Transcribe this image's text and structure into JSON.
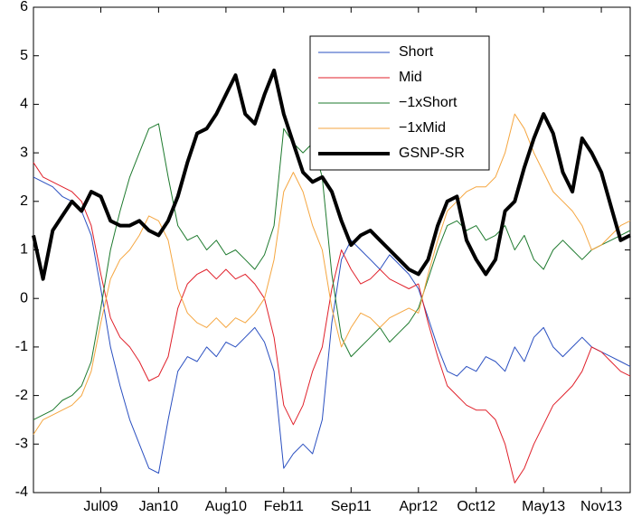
{
  "chart_data": {
    "type": "line",
    "categories": [
      null,
      null,
      null,
      null,
      null,
      null,
      null,
      "Jul09",
      null,
      null,
      null,
      null,
      null,
      "Jan10",
      null,
      null,
      null,
      null,
      null,
      null,
      "Aug10",
      null,
      null,
      null,
      null,
      null,
      "Feb11",
      null,
      null,
      null,
      null,
      null,
      null,
      "Sep11",
      null,
      null,
      null,
      null,
      null,
      null,
      "Apr12",
      null,
      null,
      null,
      null,
      null,
      "Oct12",
      null,
      null,
      null,
      null,
      null,
      null,
      "May13",
      null,
      null,
      null,
      null,
      null,
      "Nov13",
      null,
      null,
      null
    ],
    "series": [
      {
        "name": "Short",
        "color": "#2a4fc0",
        "linewidth": 1,
        "values": [
          2.5,
          2.4,
          2.3,
          2.1,
          2.0,
          1.8,
          1.3,
          0.2,
          -1.0,
          -1.8,
          -2.5,
          -3.0,
          -3.5,
          -3.6,
          -2.5,
          -1.5,
          -1.2,
          -1.3,
          -1.0,
          -1.2,
          -0.9,
          -1.0,
          -0.8,
          -0.6,
          -0.9,
          -1.5,
          -3.5,
          -3.2,
          -3.0,
          -3.2,
          -2.5,
          -0.5,
          0.8,
          1.2,
          1.0,
          0.8,
          0.6,
          0.9,
          0.7,
          0.5,
          0.2,
          -0.4,
          -1.0,
          -1.5,
          -1.6,
          -1.4,
          -1.5,
          -1.2,
          -1.3,
          -1.5,
          -1.0,
          -1.3,
          -0.8,
          -0.6,
          -1.0,
          -1.2,
          -1.0,
          -0.8,
          -1.0,
          -1.1,
          -1.2,
          -1.3,
          -1.4
        ]
      },
      {
        "name": "Mid",
        "color": "#e0202a",
        "linewidth": 1,
        "values": [
          2.8,
          2.5,
          2.4,
          2.3,
          2.2,
          2.0,
          1.5,
          0.5,
          -0.4,
          -0.8,
          -1.0,
          -1.3,
          -1.7,
          -1.6,
          -1.2,
          -0.2,
          0.3,
          0.5,
          0.6,
          0.4,
          0.6,
          0.4,
          0.5,
          0.3,
          0.0,
          -0.8,
          -2.2,
          -2.6,
          -2.2,
          -1.5,
          -1.0,
          0.2,
          1.0,
          0.6,
          0.3,
          0.4,
          0.6,
          0.4,
          0.3,
          0.2,
          0.3,
          -0.5,
          -1.2,
          -1.8,
          -2.0,
          -2.2,
          -2.3,
          -2.3,
          -2.5,
          -3.0,
          -3.8,
          -3.5,
          -3.0,
          -2.6,
          -2.2,
          -2.0,
          -1.8,
          -1.5,
          -1.0,
          -1.1,
          -1.3,
          -1.5,
          -1.6
        ]
      },
      {
        "name": "−1xShort",
        "color": "#1e7a2e",
        "linewidth": 1,
        "values": [
          -2.5,
          -2.4,
          -2.3,
          -2.1,
          -2.0,
          -1.8,
          -1.3,
          -0.2,
          1.0,
          1.8,
          2.5,
          3.0,
          3.5,
          3.6,
          2.5,
          1.5,
          1.2,
          1.3,
          1.0,
          1.2,
          0.9,
          1.0,
          0.8,
          0.6,
          0.9,
          1.5,
          3.5,
          3.2,
          3.0,
          3.2,
          2.5,
          0.5,
          -0.8,
          -1.2,
          -1.0,
          -0.8,
          -0.6,
          -0.9,
          -0.7,
          -0.5,
          -0.2,
          0.4,
          1.0,
          1.5,
          1.6,
          1.4,
          1.5,
          1.2,
          1.3,
          1.5,
          1.0,
          1.3,
          0.8,
          0.6,
          1.0,
          1.2,
          1.0,
          0.8,
          1.0,
          1.1,
          1.2,
          1.3,
          1.4
        ]
      },
      {
        "name": "−1xMid",
        "color": "#f5a640",
        "linewidth": 1,
        "values": [
          -2.8,
          -2.5,
          -2.4,
          -2.3,
          -2.2,
          -2.0,
          -1.5,
          -0.5,
          0.4,
          0.8,
          1.0,
          1.3,
          1.7,
          1.6,
          1.2,
          0.2,
          -0.3,
          -0.5,
          -0.6,
          -0.4,
          -0.6,
          -0.4,
          -0.5,
          -0.3,
          0.0,
          0.8,
          2.2,
          2.6,
          2.2,
          1.5,
          1.0,
          -0.2,
          -1.0,
          -0.6,
          -0.3,
          -0.4,
          -0.6,
          -0.4,
          -0.3,
          -0.2,
          -0.3,
          0.5,
          1.2,
          1.8,
          2.0,
          2.2,
          2.3,
          2.3,
          2.5,
          3.0,
          3.8,
          3.5,
          3.0,
          2.6,
          2.2,
          2.0,
          1.8,
          1.5,
          1.0,
          1.1,
          1.3,
          1.5,
          1.6
        ]
      },
      {
        "name": "GSNP-SR",
        "color": "#000000",
        "linewidth": 4,
        "values": [
          1.3,
          0.4,
          1.4,
          1.7,
          2.0,
          1.8,
          2.2,
          2.1,
          1.6,
          1.5,
          1.5,
          1.6,
          1.4,
          1.3,
          1.6,
          2.1,
          2.8,
          3.4,
          3.5,
          3.8,
          4.2,
          4.6,
          3.8,
          3.6,
          4.2,
          4.7,
          3.8,
          3.2,
          2.6,
          2.4,
          2.5,
          2.2,
          1.6,
          1.1,
          1.3,
          1.4,
          1.2,
          1.0,
          0.8,
          0.6,
          0.5,
          0.8,
          1.5,
          2.0,
          2.1,
          1.2,
          0.8,
          0.5,
          0.8,
          1.8,
          2.0,
          2.7,
          3.3,
          3.8,
          3.4,
          2.6,
          2.2,
          3.3,
          3.0,
          2.6,
          1.9,
          1.2,
          1.3
        ]
      }
    ],
    "ylim": [
      -4,
      6
    ],
    "yticks": [
      -4,
      -3,
      -2,
      -1,
      0,
      1,
      2,
      3,
      4,
      5,
      6
    ],
    "grid": false,
    "legend": "upper right"
  }
}
